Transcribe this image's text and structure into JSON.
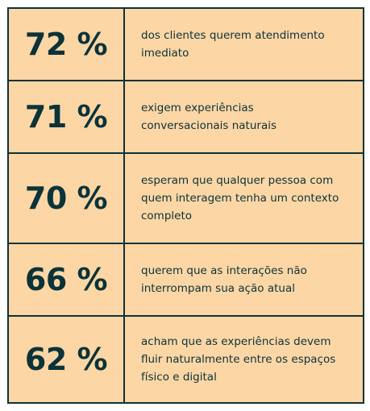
{
  "rows": [
    {
      "percent": "72 %",
      "description": "dos clientes querem atendimento imediato"
    },
    {
      "percent": "71 %",
      "description": "exigem experiências conversacionais naturais"
    },
    {
      "percent": "70 %",
      "description": "esperam que qualquer pessoa com quem interagem tenha um contexto completo"
    },
    {
      "percent": "66 %",
      "description": "querem que as interações não interrompam sua ação atual"
    },
    {
      "percent": "62 %",
      "description": "acham que as experiências devem fluir naturalmente entre os espaços físico e digital"
    }
  ],
  "colors": {
    "background": "#fdd6a6",
    "text": "#0b3338",
    "border": "#0b3338"
  }
}
